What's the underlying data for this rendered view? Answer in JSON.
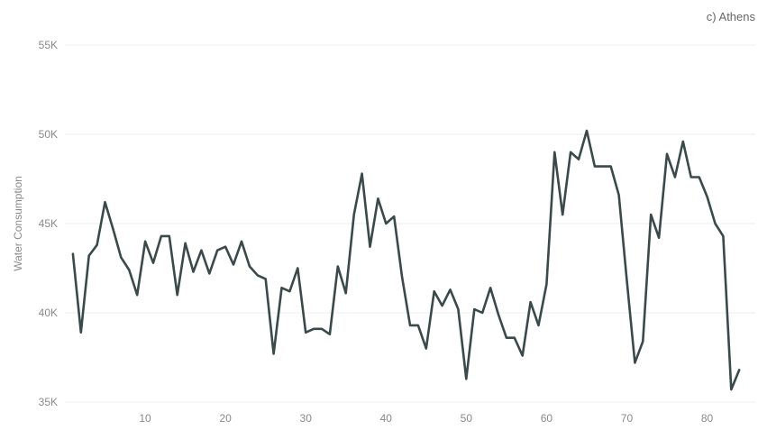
{
  "chart_data": {
    "type": "line",
    "title": "c) Athens",
    "ylabel": "Water Consumption",
    "xlabel": "",
    "xlim": [
      0,
      86
    ],
    "ylim": [
      35000,
      55000
    ],
    "yticks": [
      35000,
      40000,
      45000,
      50000,
      55000
    ],
    "ytick_labels": [
      "35K",
      "40K",
      "45K",
      "50K",
      "55K"
    ],
    "xticks": [
      10,
      20,
      30,
      40,
      50,
      60,
      70,
      80
    ],
    "xtick_labels": [
      "10",
      "20",
      "30",
      "40",
      "50",
      "60",
      "70",
      "80"
    ],
    "grid": true,
    "line_color": "#3a4a4a",
    "series": [
      {
        "x": [
          1,
          2,
          3,
          4,
          5,
          6,
          7,
          8,
          9,
          10,
          11,
          12,
          13,
          14,
          15,
          16,
          17,
          18,
          19,
          20,
          21,
          22,
          23,
          24,
          25,
          26,
          27,
          28,
          29,
          30,
          31,
          32,
          33,
          34,
          35,
          36,
          37,
          38,
          39,
          40,
          41,
          42,
          43,
          44,
          45,
          46,
          47,
          48,
          49,
          50,
          51,
          52,
          53,
          54,
          55,
          56,
          57,
          58,
          59,
          60,
          61,
          62,
          63,
          64,
          65,
          66,
          67,
          68,
          69,
          70,
          71,
          72,
          73,
          74,
          75,
          76,
          77,
          78,
          79,
          80,
          81,
          82,
          83,
          84
        ],
        "y": [
          43300,
          38900,
          43200,
          43800,
          46200,
          44700,
          43100,
          42400,
          41000,
          44000,
          42800,
          44300,
          44300,
          41000,
          43900,
          42300,
          43500,
          42200,
          43500,
          43700,
          42700,
          44000,
          42600,
          42100,
          41900,
          37700,
          41400,
          41200,
          42500,
          38900,
          39100,
          39100,
          38800,
          42600,
          41100,
          45500,
          47800,
          43700,
          46400,
          45000,
          45400,
          42000,
          39300,
          39300,
          38000,
          41200,
          40400,
          41300,
          40200,
          36300,
          40200,
          40000,
          41400,
          39900,
          38600,
          38600,
          37600,
          40600,
          39300,
          41600,
          49000,
          45500,
          49000,
          48600,
          50200,
          48200,
          48200,
          48200,
          46600,
          41800,
          37200,
          38400,
          45500,
          44200,
          48900,
          47600,
          49600,
          47600,
          47600,
          46500,
          45000,
          44300,
          35700,
          36800
        ]
      }
    ]
  }
}
